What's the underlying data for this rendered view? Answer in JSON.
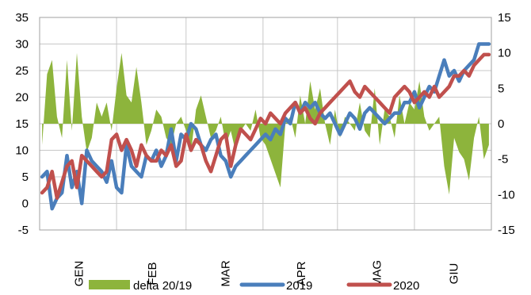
{
  "chart_data": {
    "type": "line",
    "title": "",
    "x": [
      1,
      3,
      5,
      7,
      9,
      11,
      13,
      15,
      17,
      19,
      21,
      23,
      25,
      27,
      29,
      31,
      33,
      35,
      37,
      39,
      41,
      43,
      45,
      47,
      49,
      51,
      53,
      55,
      57,
      59,
      61,
      63,
      65,
      67,
      69,
      71,
      73,
      75,
      77,
      79,
      81,
      83,
      85,
      87,
      89,
      91,
      93,
      95,
      97,
      99,
      101,
      103,
      105,
      107,
      109,
      111,
      113,
      115,
      117,
      119,
      121,
      123,
      125,
      127,
      129,
      131,
      133,
      135,
      137,
      139,
      141,
      143,
      145,
      147,
      149,
      151,
      153,
      155,
      157,
      159,
      161,
      163,
      165,
      167,
      169,
      171,
      173,
      175,
      177,
      179,
      181
    ],
    "months": [
      "GEN",
      "FEB",
      "MAR",
      "APR",
      "MAG",
      "GIU"
    ],
    "month_boundaries": [
      0,
      31,
      59,
      90,
      120,
      151,
      182
    ],
    "left_axis": {
      "ylim": [
        -5,
        35
      ],
      "ticks": [
        "-5",
        "0",
        "5",
        "10",
        "15",
        "20",
        "25",
        "30",
        "35"
      ]
    },
    "right_axis": {
      "ylim": [
        -15,
        15
      ],
      "ticks": [
        "-15",
        "-10",
        "-5",
        "0",
        "5",
        "10",
        "15"
      ]
    },
    "grid": true,
    "legend_position": "bottom",
    "series": [
      {
        "name": "delta 20/19",
        "type": "area",
        "axis": "right",
        "color": "#8db43c",
        "values": [
          -3,
          7,
          9,
          1,
          -2,
          9,
          -1,
          10,
          1,
          -4,
          -2,
          3,
          1,
          3,
          -1,
          5,
          10,
          4,
          3,
          8,
          3,
          -3,
          -1,
          2,
          1,
          -2,
          -3,
          0,
          1,
          -1,
          -4,
          2,
          4,
          1,
          -2,
          -1,
          1,
          -3,
          -1,
          -4,
          -1,
          0,
          -1,
          2,
          -2,
          -3,
          -5,
          -7,
          -9,
          0,
          1,
          -2,
          4,
          0,
          6,
          2,
          5,
          0,
          -3,
          2,
          -2,
          1,
          0,
          -1,
          3,
          -1,
          -2,
          5,
          -3,
          2,
          1,
          -2,
          4,
          0,
          3,
          2,
          6,
          1,
          -1,
          0,
          1,
          -6,
          -10,
          -2,
          -4,
          -5,
          -8,
          -2,
          1,
          -5,
          -3
        ]
      },
      {
        "name": "2019",
        "type": "line",
        "axis": "left",
        "color": "#4a7ebb",
        "values": [
          5,
          6,
          -1,
          1,
          2,
          9,
          3,
          6,
          0,
          10,
          8,
          7,
          6,
          4,
          8,
          3,
          2,
          11,
          7,
          6,
          5,
          9,
          8,
          10,
          7,
          9,
          14,
          8,
          13,
          12,
          15,
          14,
          11,
          10,
          12,
          13,
          9,
          8,
          5,
          7,
          8,
          9,
          10,
          11,
          12,
          13,
          12,
          14,
          13,
          16,
          15,
          19,
          17,
          19,
          18,
          19,
          17,
          16,
          17,
          15,
          13,
          15,
          17,
          16,
          14,
          17,
          18,
          17,
          16,
          15,
          16,
          17,
          17,
          19,
          19,
          21,
          18,
          20,
          22,
          21,
          24,
          27,
          24,
          25,
          23,
          25,
          26,
          27,
          30,
          30,
          30
        ]
      },
      {
        "name": "2020",
        "type": "line",
        "axis": "left",
        "color": "#c0504d",
        "values": [
          2,
          3,
          6,
          1,
          4,
          7,
          8,
          3,
          9,
          8,
          7,
          6,
          5,
          6,
          12,
          13,
          10,
          12,
          10,
          7,
          11,
          9,
          8,
          8,
          10,
          9,
          11,
          7,
          8,
          13,
          10,
          12,
          11,
          8,
          6,
          9,
          12,
          13,
          7,
          11,
          14,
          13,
          12,
          14,
          16,
          15,
          17,
          16,
          15,
          17,
          18,
          19,
          17,
          18,
          16,
          15,
          17,
          18,
          19,
          20,
          21,
          22,
          23,
          21,
          20,
          22,
          21,
          20,
          19,
          18,
          17,
          20,
          21,
          22,
          21,
          19,
          20,
          21,
          20,
          22,
          20,
          21,
          22,
          24,
          24,
          25,
          24,
          26,
          27,
          28,
          28
        ]
      }
    ]
  }
}
